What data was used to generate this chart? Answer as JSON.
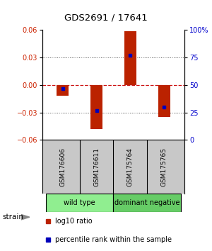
{
  "title": "GDS2691 / 17641",
  "samples": [
    "GSM176606",
    "GSM176611",
    "GSM175764",
    "GSM175765"
  ],
  "log10_ratios": [
    -0.012,
    -0.048,
    0.059,
    -0.035
  ],
  "percentile_ranks": [
    47,
    27,
    77,
    30
  ],
  "groups": [
    {
      "name": "wild type",
      "indices": [
        0,
        1
      ],
      "color": "#90EE90"
    },
    {
      "name": "dominant negative",
      "indices": [
        2,
        3
      ],
      "color": "#66CC66"
    }
  ],
  "ylim_left": [
    -0.06,
    0.06
  ],
  "ylim_right": [
    0,
    100
  ],
  "yticks_left": [
    -0.06,
    -0.03,
    0,
    0.03,
    0.06
  ],
  "yticks_right": [
    0,
    25,
    50,
    75,
    100
  ],
  "ytick_labels_right": [
    "0",
    "25",
    "50",
    "75",
    "100%"
  ],
  "bar_color": "#BB2200",
  "marker_color": "#0000BB",
  "zero_line_color": "#CC1111",
  "dotted_line_color": "#555555",
  "bg_color": "#FFFFFF",
  "plot_bg": "#FFFFFF",
  "bar_width": 0.35,
  "strain_label": "strain",
  "legend_ratio_label": "log10 ratio",
  "legend_pct_label": "percentile rank within the sample",
  "group_border_color": "#AAAAAA"
}
